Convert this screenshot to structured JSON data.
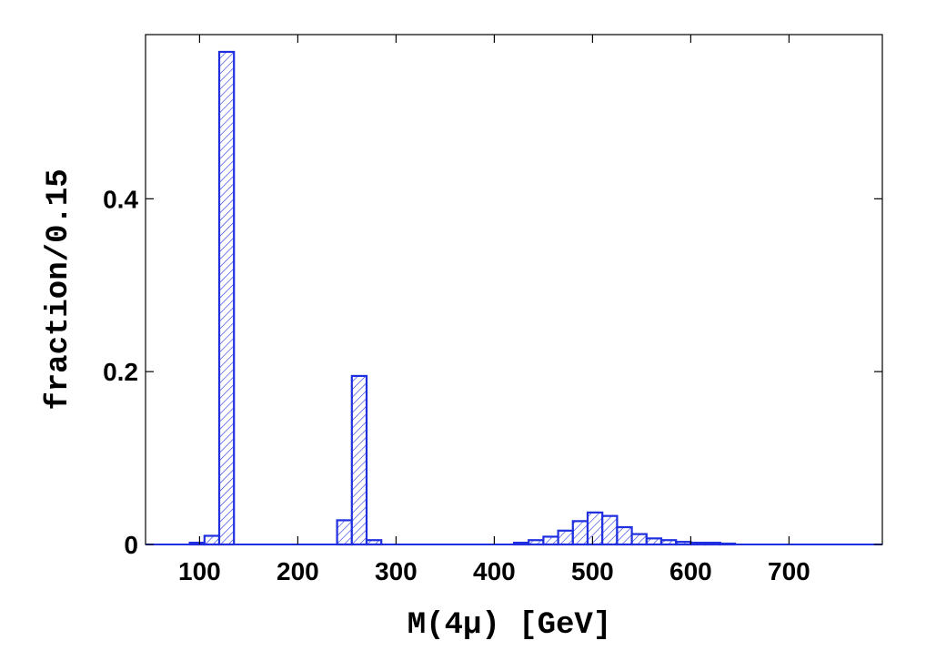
{
  "chart_data": {
    "type": "bar",
    "xlabel": "M(4μ)  [GeV]",
    "ylabel": "fraction/0.15",
    "xlim": [
      45,
      795
    ],
    "ylim": [
      0,
      0.59
    ],
    "xticks": [
      100,
      200,
      300,
      400,
      500,
      600,
      700
    ],
    "yticks": [
      0,
      0.2,
      0.4
    ],
    "ytick_labels": [
      "0",
      "0.2",
      "0.4"
    ],
    "grid": false,
    "bar_color": "#1f2fe0",
    "bin_width": 15,
    "bins": [
      {
        "x0": 90,
        "value": 0.002
      },
      {
        "x0": 105,
        "value": 0.01
      },
      {
        "x0": 120,
        "value": 0.57
      },
      {
        "x0": 240,
        "value": 0.028
      },
      {
        "x0": 255,
        "value": 0.195
      },
      {
        "x0": 270,
        "value": 0.005
      },
      {
        "x0": 420,
        "value": 0.002
      },
      {
        "x0": 435,
        "value": 0.005
      },
      {
        "x0": 450,
        "value": 0.009
      },
      {
        "x0": 465,
        "value": 0.016
      },
      {
        "x0": 480,
        "value": 0.027
      },
      {
        "x0": 495,
        "value": 0.037
      },
      {
        "x0": 510,
        "value": 0.033
      },
      {
        "x0": 525,
        "value": 0.02
      },
      {
        "x0": 540,
        "value": 0.012
      },
      {
        "x0": 555,
        "value": 0.007
      },
      {
        "x0": 570,
        "value": 0.005
      },
      {
        "x0": 585,
        "value": 0.003
      },
      {
        "x0": 600,
        "value": 0.002
      },
      {
        "x0": 615,
        "value": 0.002
      },
      {
        "x0": 630,
        "value": 0.001
      }
    ]
  }
}
